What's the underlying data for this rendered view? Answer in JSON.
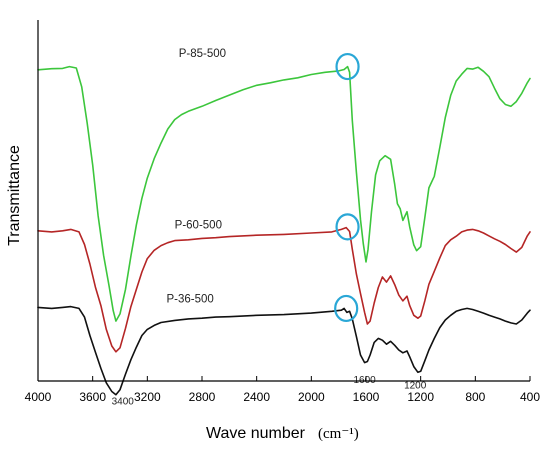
{
  "colors": {
    "P-85-500": "#3cc63c",
    "P-60-500": "#b52626",
    "P-36-500": "#111111",
    "highlight": "#2aa7d6",
    "axis": "#000000"
  },
  "chart_data": {
    "type": "line",
    "title": "",
    "xlabel": "Wave number",
    "xlabel_unit": "(cm⁻¹)",
    "ylabel": "Transmittance",
    "x_reversed": true,
    "xlim": [
      4000,
      400
    ],
    "ylim": [
      0,
      100
    ],
    "x_ticks": [
      4000,
      3600,
      3200,
      2800,
      2400,
      2000,
      1600,
      1200,
      800,
      400
    ],
    "x_tick_labels": [
      "4000",
      "3600",
      "3200",
      "2800",
      "2400",
      "2000",
      "1600",
      "1200",
      "800",
      "400"
    ],
    "y_ticks_shown": false,
    "grid": false,
    "legend": "none; series labelled inline",
    "series": [
      {
        "name": "P-85-500",
        "color": "#3cc63c",
        "points": [
          [
            4000,
            86.2
          ],
          [
            3900,
            86.5
          ],
          [
            3820,
            86.6
          ],
          [
            3770,
            87.1
          ],
          [
            3720,
            86.7
          ],
          [
            3680,
            81.5
          ],
          [
            3640,
            71.4
          ],
          [
            3600,
            59.8
          ],
          [
            3560,
            45.8
          ],
          [
            3520,
            34.8
          ],
          [
            3480,
            26.3
          ],
          [
            3450,
            19.5
          ],
          [
            3430,
            16.6
          ],
          [
            3400,
            18.6
          ],
          [
            3360,
            25.4
          ],
          [
            3320,
            34.6
          ],
          [
            3280,
            43.3
          ],
          [
            3240,
            50.6
          ],
          [
            3200,
            56.2
          ],
          [
            3150,
            61.6
          ],
          [
            3100,
            65.9
          ],
          [
            3050,
            69.8
          ],
          [
            3000,
            72.4
          ],
          [
            2950,
            73.8
          ],
          [
            2900,
            74.7
          ],
          [
            2800,
            76.1
          ],
          [
            2700,
            77.7
          ],
          [
            2600,
            79.2
          ],
          [
            2500,
            80.7
          ],
          [
            2400,
            81.9
          ],
          [
            2300,
            82.6
          ],
          [
            2200,
            83.4
          ],
          [
            2100,
            84.0
          ],
          [
            2000,
            84.9
          ],
          [
            1900,
            85.5
          ],
          [
            1800,
            85.9
          ],
          [
            1760,
            86.3
          ],
          [
            1735,
            87.1
          ],
          [
            1720,
            85.5
          ],
          [
            1700,
            72.2
          ],
          [
            1670,
            57.8
          ],
          [
            1640,
            44.7
          ],
          [
            1620,
            38.0
          ],
          [
            1600,
            33.0
          ],
          [
            1585,
            36.4
          ],
          [
            1560,
            46.9
          ],
          [
            1530,
            57.1
          ],
          [
            1500,
            61.0
          ],
          [
            1460,
            62.4
          ],
          [
            1420,
            61.4
          ],
          [
            1390,
            54.5
          ],
          [
            1370,
            49.1
          ],
          [
            1350,
            47.7
          ],
          [
            1330,
            44.5
          ],
          [
            1300,
            46.9
          ],
          [
            1280,
            42.7
          ],
          [
            1250,
            37.7
          ],
          [
            1230,
            36.1
          ],
          [
            1200,
            37.2
          ],
          [
            1170,
            45.2
          ],
          [
            1140,
            53.5
          ],
          [
            1100,
            56.7
          ],
          [
            1060,
            64.7
          ],
          [
            1020,
            73.0
          ],
          [
            980,
            79.1
          ],
          [
            940,
            83.1
          ],
          [
            900,
            85.0
          ],
          [
            860,
            86.6
          ],
          [
            820,
            86.4
          ],
          [
            780,
            86.9
          ],
          [
            740,
            85.8
          ],
          [
            700,
            84.3
          ],
          [
            660,
            81.1
          ],
          [
            620,
            78.2
          ],
          [
            580,
            76.6
          ],
          [
            540,
            76.1
          ],
          [
            500,
            77.4
          ],
          [
            460,
            79.7
          ],
          [
            420,
            82.6
          ],
          [
            400,
            83.8
          ]
        ]
      },
      {
        "name": "P-60-500",
        "color": "#b52626",
        "points": [
          [
            4000,
            41.6
          ],
          [
            3900,
            41.3
          ],
          [
            3820,
            41.6
          ],
          [
            3760,
            42.0
          ],
          [
            3700,
            41.3
          ],
          [
            3660,
            37.8
          ],
          [
            3620,
            32.4
          ],
          [
            3580,
            26.0
          ],
          [
            3540,
            20.9
          ],
          [
            3500,
            14.3
          ],
          [
            3460,
            9.7
          ],
          [
            3430,
            8.1
          ],
          [
            3400,
            9.2
          ],
          [
            3360,
            14.6
          ],
          [
            3320,
            20.6
          ],
          [
            3280,
            25.4
          ],
          [
            3240,
            30.2
          ],
          [
            3200,
            33.9
          ],
          [
            3150,
            36.2
          ],
          [
            3100,
            37.5
          ],
          [
            3050,
            38.3
          ],
          [
            3000,
            38.9
          ],
          [
            2900,
            39.1
          ],
          [
            2800,
            39.5
          ],
          [
            2700,
            39.7
          ],
          [
            2600,
            40.0
          ],
          [
            2400,
            40.4
          ],
          [
            2200,
            40.6
          ],
          [
            2000,
            41.0
          ],
          [
            1850,
            41.3
          ],
          [
            1780,
            42.0
          ],
          [
            1745,
            42.5
          ],
          [
            1720,
            41.4
          ],
          [
            1700,
            36.5
          ],
          [
            1670,
            29.6
          ],
          [
            1640,
            24.2
          ],
          [
            1610,
            19.0
          ],
          [
            1590,
            15.8
          ],
          [
            1570,
            16.6
          ],
          [
            1540,
            21.6
          ],
          [
            1510,
            25.9
          ],
          [
            1480,
            28.8
          ],
          [
            1450,
            27.4
          ],
          [
            1420,
            29.1
          ],
          [
            1390,
            26.7
          ],
          [
            1360,
            23.8
          ],
          [
            1330,
            22.2
          ],
          [
            1300,
            23.5
          ],
          [
            1280,
            20.9
          ],
          [
            1250,
            18.2
          ],
          [
            1220,
            17.4
          ],
          [
            1200,
            18.0
          ],
          [
            1170,
            22.2
          ],
          [
            1140,
            26.8
          ],
          [
            1100,
            30.4
          ],
          [
            1060,
            34.1
          ],
          [
            1020,
            37.5
          ],
          [
            980,
            39.1
          ],
          [
            940,
            40.1
          ],
          [
            900,
            41.3
          ],
          [
            860,
            41.8
          ],
          [
            820,
            42.0
          ],
          [
            780,
            41.6
          ],
          [
            740,
            41.0
          ],
          [
            700,
            40.2
          ],
          [
            660,
            39.4
          ],
          [
            620,
            38.7
          ],
          [
            580,
            37.8
          ],
          [
            540,
            36.7
          ],
          [
            500,
            35.7
          ],
          [
            460,
            37.0
          ],
          [
            420,
            40.2
          ],
          [
            400,
            41.3
          ]
        ]
      },
      {
        "name": "P-36-500",
        "color": "#111111",
        "points": [
          [
            4000,
            20.4
          ],
          [
            3900,
            20.1
          ],
          [
            3820,
            20.4
          ],
          [
            3760,
            20.6
          ],
          [
            3700,
            20.1
          ],
          [
            3660,
            17.7
          ],
          [
            3620,
            12.6
          ],
          [
            3580,
            8.0
          ],
          [
            3540,
            3.5
          ],
          [
            3500,
            -0.5
          ],
          [
            3460,
            -2.9
          ],
          [
            3430,
            -3.8
          ],
          [
            3400,
            -2.4
          ],
          [
            3360,
            1.9
          ],
          [
            3320,
            5.9
          ],
          [
            3280,
            9.4
          ],
          [
            3240,
            12.6
          ],
          [
            3200,
            14.3
          ],
          [
            3150,
            15.4
          ],
          [
            3100,
            16.2
          ],
          [
            3000,
            16.8
          ],
          [
            2900,
            17.2
          ],
          [
            2800,
            17.4
          ],
          [
            2700,
            17.7
          ],
          [
            2600,
            17.8
          ],
          [
            2400,
            18.2
          ],
          [
            2200,
            18.4
          ],
          [
            2000,
            18.8
          ],
          [
            1850,
            19.3
          ],
          [
            1780,
            19.6
          ],
          [
            1760,
            20.1
          ],
          [
            1740,
            19.0
          ],
          [
            1720,
            19.3
          ],
          [
            1700,
            17.2
          ],
          [
            1670,
            12.3
          ],
          [
            1640,
            7.2
          ],
          [
            1610,
            5.1
          ],
          [
            1590,
            5.4
          ],
          [
            1570,
            7.2
          ],
          [
            1540,
            10.7
          ],
          [
            1510,
            11.8
          ],
          [
            1480,
            11.3
          ],
          [
            1450,
            10.2
          ],
          [
            1420,
            11.0
          ],
          [
            1390,
            9.9
          ],
          [
            1360,
            8.6
          ],
          [
            1330,
            7.8
          ],
          [
            1300,
            8.3
          ],
          [
            1280,
            6.7
          ],
          [
            1250,
            4.0
          ],
          [
            1220,
            2.4
          ],
          [
            1200,
            2.7
          ],
          [
            1170,
            5.6
          ],
          [
            1140,
            8.6
          ],
          [
            1100,
            11.8
          ],
          [
            1060,
            14.8
          ],
          [
            1020,
            16.9
          ],
          [
            980,
            18.2
          ],
          [
            940,
            19.3
          ],
          [
            900,
            19.8
          ],
          [
            860,
            20.1
          ],
          [
            820,
            19.8
          ],
          [
            780,
            19.3
          ],
          [
            740,
            18.8
          ],
          [
            700,
            18.2
          ],
          [
            660,
            17.7
          ],
          [
            620,
            17.2
          ],
          [
            580,
            16.6
          ],
          [
            540,
            16.1
          ],
          [
            500,
            15.8
          ],
          [
            460,
            16.9
          ],
          [
            420,
            18.8
          ],
          [
            400,
            19.6
          ]
        ]
      }
    ],
    "labels": [
      {
        "series": "P-85-500",
        "text": "P-85-500",
        "x": 2970,
        "y": 89.8
      },
      {
        "series": "P-60-500",
        "text": "P-60-500",
        "x": 3000,
        "y": 42.2
      },
      {
        "series": "P-36-500",
        "text": "P-36-500",
        "x": 3060,
        "y": 21.7
      }
    ],
    "annotations": [
      {
        "text": "3400",
        "x": 3380,
        "y": -6.5
      },
      {
        "text": "1600",
        "x": 1610,
        "y": -0.5
      },
      {
        "text": "1200",
        "x": 1240,
        "y": -2.1
      }
    ],
    "highlights": [
      {
        "series": "P-85-500",
        "x": 1735,
        "y": 87.1
      },
      {
        "series": "P-60-500",
        "x": 1735,
        "y": 42.7
      },
      {
        "series": "P-36-500",
        "x": 1745,
        "y": 20.1
      }
    ]
  }
}
